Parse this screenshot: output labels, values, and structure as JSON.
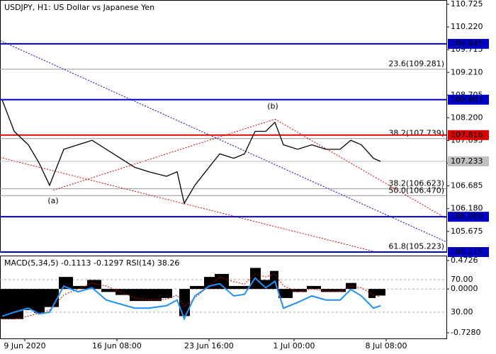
{
  "chart_data": [
    {
      "type": "line",
      "title": "USDJPY, H1:  US Dollar vs Japanese Yen",
      "x": [
        0.6,
        4,
        8,
        11,
        14,
        18,
        22,
        26,
        30,
        34,
        38,
        42,
        47,
        50,
        52,
        55,
        59,
        62,
        66,
        69,
        72,
        75,
        77.6,
        80,
        84,
        88,
        92,
        96,
        99,
        102,
        105.4,
        107.4
      ],
      "series": [
        {
          "color": "#000000",
          "values": [
            108.6,
            107.9,
            107.6,
            107.2,
            106.7,
            107.5,
            107.6,
            107.7,
            107.5,
            107.3,
            107.1,
            107.0,
            106.9,
            107.0,
            106.3,
            106.7,
            107.1,
            107.4,
            107.3,
            107.4,
            107.9,
            107.9,
            108.1,
            107.6,
            107.5,
            107.6,
            107.5,
            107.5,
            107.7,
            107.6,
            107.3,
            107.23
          ]
        }
      ],
      "xlim": [
        0,
        126
      ],
      "xticks": [
        {
          "value": 7,
          "label": "9 Jun 2020"
        },
        {
          "value": 33,
          "label": "16 Jun 08:00"
        },
        {
          "value": 59,
          "label": "23 Jun 16:00"
        },
        {
          "value": 83,
          "label": "1 Jul 00:00"
        },
        {
          "value": 109,
          "label": "8 Jul 08:00"
        }
      ],
      "ylim": [
        105.215,
        110.82
      ],
      "yticks": [
        110.725,
        {
          "value": 110.22,
          "label": "110.220"
        },
        109.715,
        {
          "value": 109.21,
          "label": "109.210"
        },
        108.705,
        {
          "value": 108.2,
          "label": "108.200"
        },
        107.695,
        {
          "value": 107.19,
          "label": "107.190"
        },
        106.685,
        {
          "value": 106.18,
          "label": "106.180"
        },
        105.675
      ],
      "levels": [
        {
          "value": 109.845,
          "color": "#0000cc"
        },
        {
          "value": 108.603,
          "color": "#0000cc"
        },
        {
          "value": 107.816,
          "color": "#dd0000"
        },
        {
          "value": 106.0,
          "label": "106.000",
          "color": "#0000cc"
        },
        {
          "value": 105.215,
          "color": "#0000cc"
        }
      ],
      "current_price": 107.233,
      "fib_levels": [
        {
          "value": 109.281,
          "label": "23.6(109.281)"
        },
        {
          "value": 107.739,
          "label": "38.2(107.739)"
        },
        {
          "value": 106.623,
          "label": "38.2(106.623)"
        },
        {
          "value": 106.47,
          "label": "50.0(106.470)"
        },
        {
          "value": 105.223,
          "label": "61.8(105.223)"
        }
      ],
      "trend_lines": [
        {
          "color": "#0000dd",
          "x": [
            0,
            126
          ],
          "values": [
            109.92,
            105.44
          ]
        },
        {
          "color": "#dd0000",
          "x": [
            15,
            77.6
          ],
          "values": [
            106.59,
            108.17
          ]
        },
        {
          "color": "#dd0000",
          "x": [
            77.6,
            126
          ],
          "values": [
            108.17,
            105.96
          ]
        },
        {
          "color": "#dd0000",
          "x": [
            0,
            106
          ],
          "values": [
            107.32,
            105.22
          ]
        }
      ],
      "annotations": [
        {
          "text": "(a)",
          "x": 15,
          "y": 106.35
        },
        {
          "text": "(b)",
          "x": 77,
          "y": 108.45
        }
      ]
    },
    {
      "type": "indicator",
      "title": "MACD(5,34,5) -0.1113 -0.1297 RSI(14) 38.26",
      "x": [
        0.6,
        4,
        8,
        11,
        14,
        18,
        22,
        26,
        30,
        34,
        38,
        42,
        47,
        50,
        52,
        55,
        59,
        62,
        66,
        69,
        72,
        75,
        77.6,
        80,
        84,
        88,
        92,
        96,
        99,
        102,
        105.4,
        107.4
      ],
      "xlim": [
        0,
        126
      ],
      "ylim": [
        -0.822,
        0.543
      ],
      "yticks": [
        0.4726,
        {
          "value": 0,
          "label": "0.0000"
        },
        {
          "value": -0.728,
          "label": "-0.7280"
        }
      ],
      "y2lim": [
        -2.2,
        98.7
      ],
      "y2ticks": [
        {
          "value": 70,
          "label": "70.00"
        },
        {
          "value": 30,
          "label": "30.00"
        }
      ],
      "series": [
        {
          "kind": "bar",
          "color": "#000000",
          "values": [
            -0.5,
            -0.5,
            -0.35,
            -0.4,
            -0.3,
            0.2,
            0.05,
            0.15,
            -0.05,
            -0.1,
            -0.2,
            -0.2,
            -0.15,
            0,
            -0.45,
            0.05,
            0.2,
            0.25,
            0.05,
            0.05,
            0.35,
            0.15,
            0.3,
            -0.15,
            -0.05,
            0.05,
            -0.05,
            -0.05,
            0.1,
            0,
            -0.15,
            -0.11
          ]
        },
        {
          "kind": "dotted",
          "color": "#dd0000",
          "values": [
            -0.5,
            -0.5,
            -0.45,
            -0.4,
            -0.35,
            -0.1,
            0,
            0.1,
            0.05,
            -0.05,
            -0.15,
            -0.18,
            -0.17,
            -0.1,
            -0.3,
            -0.15,
            0.05,
            0.2,
            0.12,
            0.08,
            0.25,
            0.2,
            0.25,
            0.05,
            -0.05,
            0,
            -0.03,
            -0.04,
            0.05,
            0.02,
            -0.1,
            -0.13
          ]
        },
        {
          "kind": "line",
          "color": "#1e90ff",
          "axis": "y2",
          "values": [
            25,
            30,
            35,
            28,
            30,
            62,
            55,
            60,
            45,
            40,
            35,
            35,
            38,
            45,
            22,
            50,
            62,
            65,
            50,
            52,
            72,
            60,
            68,
            35,
            42,
            50,
            45,
            45,
            58,
            50,
            35,
            38
          ]
        }
      ]
    }
  ]
}
